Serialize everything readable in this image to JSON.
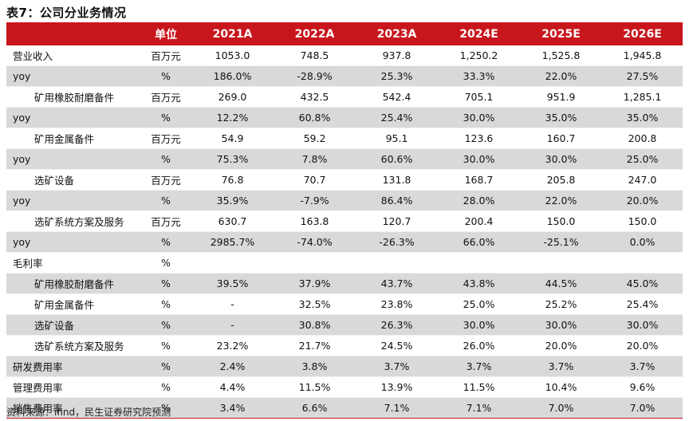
{
  "title": "表7：公司分业务情况",
  "footer": "资料来源：ifind，民生证券研究院预测",
  "header": {
    "unit": "单位",
    "years": [
      "2021A",
      "2022A",
      "2023A",
      "2024E",
      "2025E",
      "2026E"
    ]
  },
  "rows": [
    {
      "label": "营业收入",
      "unit": "百万元",
      "indent": false,
      "shade": false,
      "values": [
        "1053.0",
        "748.5",
        "937.8",
        "1,250.2",
        "1,525.8",
        "1,945.8"
      ]
    },
    {
      "label": "yoy",
      "unit": "%",
      "indent": false,
      "shade": true,
      "values": [
        "186.0%",
        "-28.9%",
        "25.3%",
        "33.3%",
        "22.0%",
        "27.5%"
      ]
    },
    {
      "label": "矿用橡胶耐磨备件",
      "unit": "百万元",
      "indent": true,
      "shade": false,
      "values": [
        "269.0",
        "432.5",
        "542.4",
        "705.1",
        "951.9",
        "1,285.1"
      ]
    },
    {
      "label": "yoy",
      "unit": "%",
      "indent": false,
      "shade": true,
      "values": [
        "12.2%",
        "60.8%",
        "25.4%",
        "30.0%",
        "35.0%",
        "35.0%"
      ]
    },
    {
      "label": "矿用金属备件",
      "unit": "百万元",
      "indent": true,
      "shade": false,
      "values": [
        "54.9",
        "59.2",
        "95.1",
        "123.6",
        "160.7",
        "200.8"
      ]
    },
    {
      "label": "yoy",
      "unit": "%",
      "indent": false,
      "shade": true,
      "values": [
        "75.3%",
        "7.8%",
        "60.6%",
        "30.0%",
        "30.0%",
        "25.0%"
      ]
    },
    {
      "label": "选矿设备",
      "unit": "百万元",
      "indent": true,
      "shade": false,
      "values": [
        "76.8",
        "70.7",
        "131.8",
        "168.7",
        "205.8",
        "247.0"
      ]
    },
    {
      "label": "yoy",
      "unit": "%",
      "indent": false,
      "shade": true,
      "values": [
        "35.9%",
        "-7.9%",
        "86.4%",
        "28.0%",
        "22.0%",
        "20.0%"
      ]
    },
    {
      "label": "选矿系统方案及服务",
      "unit": "百万元",
      "indent": true,
      "shade": false,
      "values": [
        "630.7",
        "163.8",
        "120.7",
        "200.4",
        "150.0",
        "150.0"
      ]
    },
    {
      "label": "yoy",
      "unit": "%",
      "indent": false,
      "shade": true,
      "values": [
        "2985.7%",
        "-74.0%",
        "-26.3%",
        "66.0%",
        "-25.1%",
        "0.0%"
      ]
    },
    {
      "label": "毛利率",
      "unit": "%",
      "indent": false,
      "shade": false,
      "values": [
        "",
        "",
        "",
        "",
        "",
        ""
      ]
    },
    {
      "label": "矿用橡胶耐磨备件",
      "unit": "%",
      "indent": true,
      "shade": true,
      "values": [
        "39.5%",
        "37.9%",
        "43.7%",
        "43.8%",
        "44.5%",
        "45.0%"
      ]
    },
    {
      "label": "矿用金属备件",
      "unit": "%",
      "indent": true,
      "shade": false,
      "values": [
        "-",
        "32.5%",
        "23.8%",
        "25.0%",
        "25.2%",
        "25.4%"
      ]
    },
    {
      "label": "选矿设备",
      "unit": "%",
      "indent": true,
      "shade": true,
      "values": [
        "-",
        "30.8%",
        "26.3%",
        "30.0%",
        "30.0%",
        "30.0%"
      ]
    },
    {
      "label": "选矿系统方案及服务",
      "unit": "%",
      "indent": true,
      "shade": false,
      "values": [
        "23.2%",
        "21.7%",
        "24.5%",
        "26.0%",
        "20.0%",
        "20.0%"
      ]
    },
    {
      "label": "研发费用率",
      "unit": "%",
      "indent": false,
      "shade": true,
      "values": [
        "2.4%",
        "3.8%",
        "3.7%",
        "3.7%",
        "3.7%",
        "3.7%"
      ]
    },
    {
      "label": "管理费用率",
      "unit": "%",
      "indent": false,
      "shade": false,
      "values": [
        "4.4%",
        "11.5%",
        "13.9%",
        "11.5%",
        "10.4%",
        "9.6%"
      ]
    },
    {
      "label": "销售费用率",
      "unit": "%",
      "indent": false,
      "shade": true,
      "values": [
        "3.4%",
        "6.6%",
        "7.1%",
        "7.1%",
        "7.0%",
        "7.0%"
      ]
    }
  ]
}
